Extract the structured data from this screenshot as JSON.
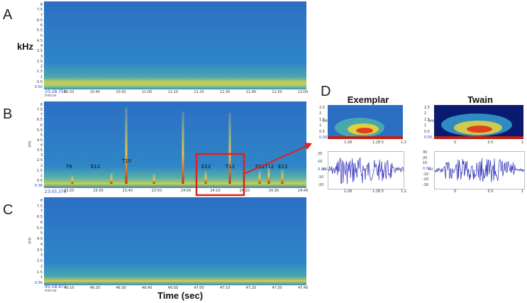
{
  "panels": {
    "A": {
      "letter": "A",
      "start_time": "10:28.756",
      "x_ticks": [
        "10:33",
        "10:40",
        "10:50",
        "11:00",
        "11:10",
        "11:20",
        "11:30",
        "11:40",
        "11:50",
        "12:00"
      ],
      "y_ticks": [
        "8",
        "7.5",
        "7",
        "6.5",
        "6",
        "5.5",
        "5",
        "4.5",
        "4",
        "3.5",
        "3",
        "2.5",
        "2",
        "1.5",
        "1",
        "0.5",
        "0.50"
      ]
    },
    "B": {
      "letter": "B",
      "start_time": "23:05.376",
      "y_unit": "kHz",
      "x_ticks": [
        "23:20",
        "23:39",
        "23:40",
        "23:50",
        "24:00",
        "24:10",
        "24:20",
        "24:30",
        "24:40"
      ],
      "y_ticks": [
        "8",
        "7.5",
        "7",
        "6.5",
        "6",
        "5.5",
        "5",
        "4.5",
        "4",
        "3.5",
        "3",
        "2.5",
        "2",
        "1.5",
        "1",
        "0.5",
        "0.36"
      ],
      "calls": [
        "T9",
        "E11",
        "T10",
        "E12",
        "T11",
        "E12",
        "T12",
        "E13"
      ]
    },
    "C": {
      "letter": "C",
      "start_time": "45:18.477",
      "y_unit": "kHz",
      "x_ticks": [
        "46:10",
        "46:20",
        "46:30",
        "46:40",
        "46:50",
        "47:00",
        "47:10",
        "47:20",
        "47:30",
        "47:40"
      ],
      "y_ticks": [
        "8",
        "7.5",
        "7",
        "6.5",
        "6",
        "5.5",
        "5",
        "4.5",
        "4",
        "3.5",
        "3",
        "2.5",
        "2",
        "1.5",
        "1",
        "0.56"
      ]
    },
    "D": {
      "letter": "D",
      "exemplar": {
        "title": "Exemplar",
        "spec_y": [
          "2.5",
          "2",
          "1.5",
          "1",
          "0.5",
          "0.00"
        ],
        "spec_x": [
          "1:28",
          "1:28.5",
          "1:2"
        ],
        "wave_y": [
          "20",
          "10",
          "0.00",
          "-10",
          "-20"
        ],
        "wave_x": [
          "1:28",
          "1:28.5",
          "1:2"
        ],
        "y_unit": "kHz",
        "wave_unit": "kU"
      },
      "twain": {
        "title": "Twain",
        "spec_y": [
          "2.5",
          "2",
          "1.5",
          "1",
          "0.5",
          "0.00"
        ],
        "spec_x": [
          "0",
          "0.5",
          "1"
        ],
        "wave_y": [
          "30",
          "20",
          "10",
          "0.00",
          "-10",
          "-20",
          "-30"
        ],
        "wave_x": [
          "0",
          "0.5",
          "1"
        ],
        "y_unit": "kHz",
        "wave_unit": "kU"
      }
    }
  },
  "labels": {
    "y_axis": "kHz",
    "x_axis": "Time (sec)",
    "time_unit": "mm:ss"
  },
  "colors": {
    "spectrogram_bg": "#2a78c8",
    "noise_band": "#d8d040",
    "highlight_box": "#e02020",
    "arrow": "#e02020"
  }
}
